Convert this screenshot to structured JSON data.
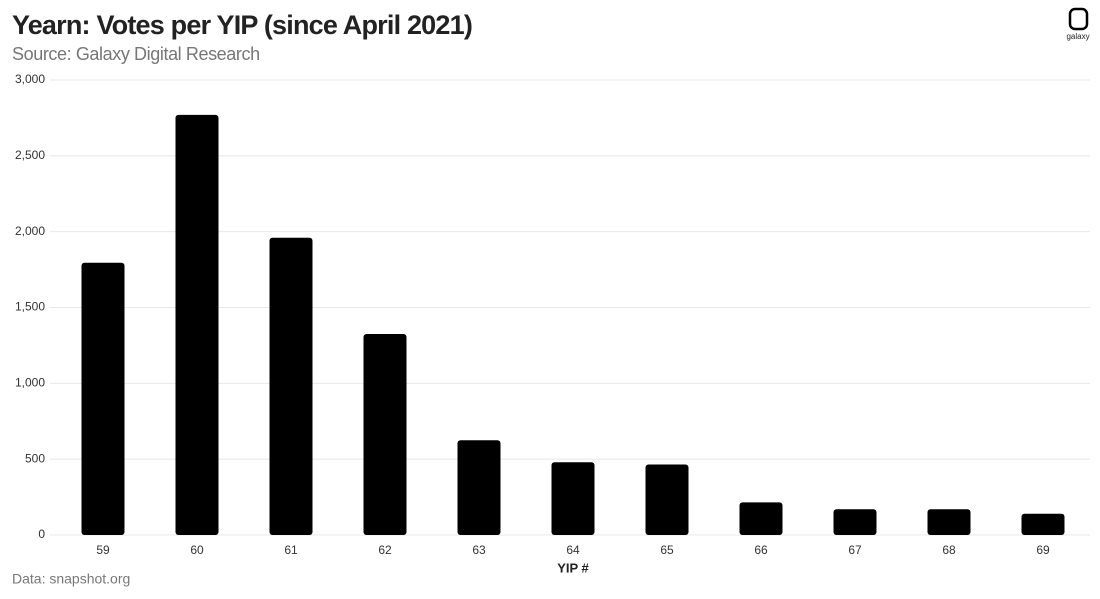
{
  "brand": "galaxy",
  "chart_data": {
    "type": "bar",
    "title": "Yearn: Votes per YIP (since April 2021)",
    "subtitle": "Source: Galaxy Digital Research",
    "source_note": "Data: snapshot.org",
    "x_label": "YIP #",
    "categories": [
      "59",
      "60",
      "61",
      "62",
      "63",
      "64",
      "65",
      "66",
      "67",
      "68",
      "69"
    ],
    "values": [
      1795,
      2770,
      1960,
      1325,
      625,
      480,
      465,
      215,
      170,
      170,
      140
    ],
    "color": "#000000",
    "ylim": [
      0,
      3000
    ],
    "yticks": [
      0,
      500,
      {
        "value": 1000,
        "label": "1,000"
      },
      {
        "value": 1500,
        "label": "1,500"
      },
      {
        "value": 2000,
        "label": "2,000"
      },
      {
        "value": 2500,
        "label": "2,500"
      },
      {
        "value": 3000,
        "label": "3,000"
      }
    ],
    "grid": true
  }
}
